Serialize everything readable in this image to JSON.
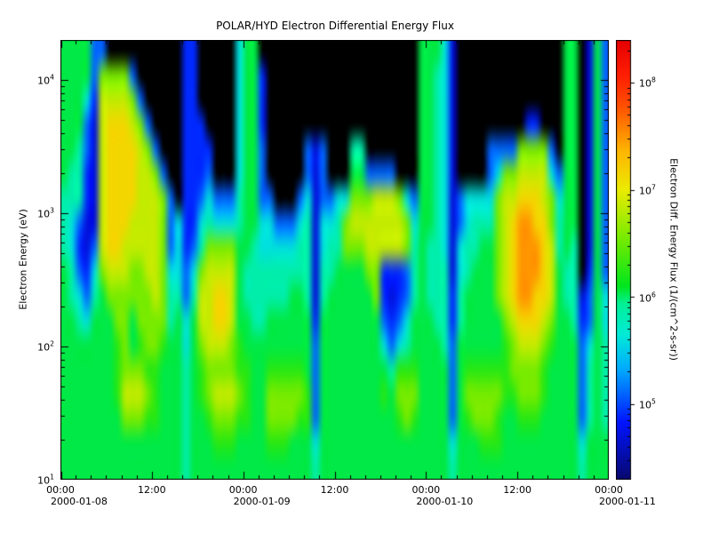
{
  "title": "POLAR/HYD  Electron Differential Energy Flux",
  "axes": {
    "y_label": "Electron Energy (eV)",
    "colorbar_label": "Electron Diff. Energy Flux (1/(cm^2-s-sr))"
  },
  "chart_data": {
    "type": "heatmap",
    "title": "POLAR/HYD  Electron Differential Energy Flux",
    "x_axis": {
      "time_tick_labels": [
        "00:00",
        "12:00",
        "00:00",
        "12:00",
        "00:00",
        "12:00",
        "00:00"
      ],
      "time_tick_hours": [
        0,
        12,
        24,
        36,
        48,
        60,
        72
      ],
      "date_labels": [
        "2000-01-08",
        "2000-01-09",
        "2000-01-10",
        "2000-01-11"
      ],
      "date_label_hours": [
        0,
        24,
        48,
        72
      ],
      "range_hours": [
        0,
        72
      ],
      "minor_tick_step_hours": 2
    },
    "y_axis": {
      "label": "Electron Energy (eV)",
      "tick_exponents": [
        1,
        2,
        3,
        4
      ],
      "range_log10_ev": [
        1.0,
        4.3
      ]
    },
    "colorbar": {
      "label": "Electron Diff. Energy Flux (1/(cm^2-s-sr))",
      "tick_exponents": [
        5,
        6,
        7,
        8
      ],
      "range_log10_flux": [
        4.3,
        8.4
      ],
      "palette_stops": [
        [
          0.0,
          [
            8,
            8,
            110
          ]
        ],
        [
          0.13,
          [
            0,
            20,
            255
          ]
        ],
        [
          0.25,
          [
            0,
            170,
            255
          ]
        ],
        [
          0.33,
          [
            0,
            235,
            215
          ]
        ],
        [
          0.4,
          [
            0,
            240,
            150
          ]
        ],
        [
          0.44,
          [
            0,
            230,
            30
          ]
        ],
        [
          0.55,
          [
            120,
            235,
            0
          ]
        ],
        [
          0.66,
          [
            235,
            235,
            0
          ]
        ],
        [
          0.75,
          [
            255,
            180,
            0
          ]
        ],
        [
          0.85,
          [
            255,
            80,
            0
          ]
        ],
        [
          0.92,
          [
            255,
            30,
            0
          ]
        ],
        [
          1.0,
          [
            230,
            0,
            0
          ]
        ]
      ],
      "no_data_color": [
        0,
        0,
        0
      ]
    },
    "grid": {
      "note": "Flux grid, 72 hourly columns (2000-01-08 00:00 to 2000-01-11 00:00) x 18 rows (log energy 4.3 top to 1.0 bottom). Chars map to log10 flux; '.' = no data (black).",
      "cols_hours": 72,
      "rows_top_to_bottom": 18,
      "value_map_log10_flux": {
        "0": 4.7,
        "1": 4.9,
        "2": 5.1,
        "3": 5.35,
        "4": 5.6,
        "5": 5.85,
        "6": 6.05,
        "7": 6.25,
        "8": 6.55,
        "9": 6.85,
        "a": 7.15,
        "b": 7.5,
        "c": 8.0,
        ".": null
      },
      "rows": [
        [
          "666622......",
          "....11.....4",
          "66..........",
          "...........6",
          "6640........",
          "......66.062"
        ],
        [
          "6666288882..",
          "....11.....4",
          "661.........",
          "...........6",
          "6540........",
          "......66.062"
        ],
        [
          "66641999982.",
          "....11.....4",
          "661.........",
          "...........6",
          "6540........",
          "......66.062"
        ],
        [
          "666209aaa982",
          "....111....4",
          "661.........",
          "...........6",
          "6540........",
          ".11...66.062"
        ],
        [
          "665209aaaa98",
          "2...1111...4",
          "662.....202.",
          "..55.......6",
          "6540....2222",
          "88882.66.062"
        ],
        [
          "655109aaaa99",
          "82..1112...4",
          "662.....202.",
          "..662222...6",
          "6540....2488",
          "99994266.062"
        ],
        [
          "555109aaaa99",
          "982.11242225",
          "6622...24022",
          "448889998426",
          "654024444899",
          "aaa98466.062"
        ],
        [
          "542009aaa999",
          "982411454445",
          "664422245044",
          "589999999846",
          "65402455589a",
          "bbaa8566.062"
        ],
        [
          "541029aa9999",
          "982412588886",
          "654444455045",
          "588899999856",
          "55404556689a",
          "bbba9565.062"
        ],
        [
          "652148999889",
          "984424899996",
          "555555555055",
          "666688111256",
          "55504566689a",
          "bbba9655.162"
        ],
        [
          "654256888888",
          "98552599aa96",
          "555555665056",
          "666668101256",
          "55515666689a",
          "bbaa96550264"
        ],
        [
          "665466688688",
          "88564699aa96",
          "655666666166",
          "666666212466",
          "655156666689",
          "aaa986651264"
        ],
        [
          "666666678678",
          "876646899987",
          "666666666266",
          "666666424566",
          "665266666678",
          "999876662465"
        ],
        [
          "666666678887",
          "766656788887",
          "766777776266",
          "666666657776",
          "666267777778",
          "888766662565"
        ],
        [
          "666666679998",
          "766656789998",
          "766888887266",
          "666666768886",
          "666268888877",
          "888766662565"
        ],
        [
          "666666668887",
          "766656678887",
          "766888877266",
          "666666667876",
          "666267888766",
          "777666662565"
        ],
        [
          "666666666666",
          "666656667776",
          "666777666466",
          "666666666666",
          "666466677766",
          "666666664666"
        ],
        [
          "666666666666",
          "666656666666",
          "666666666566",
          "666666666666",
          "666566666666",
          "666666665666"
        ]
      ]
    }
  }
}
